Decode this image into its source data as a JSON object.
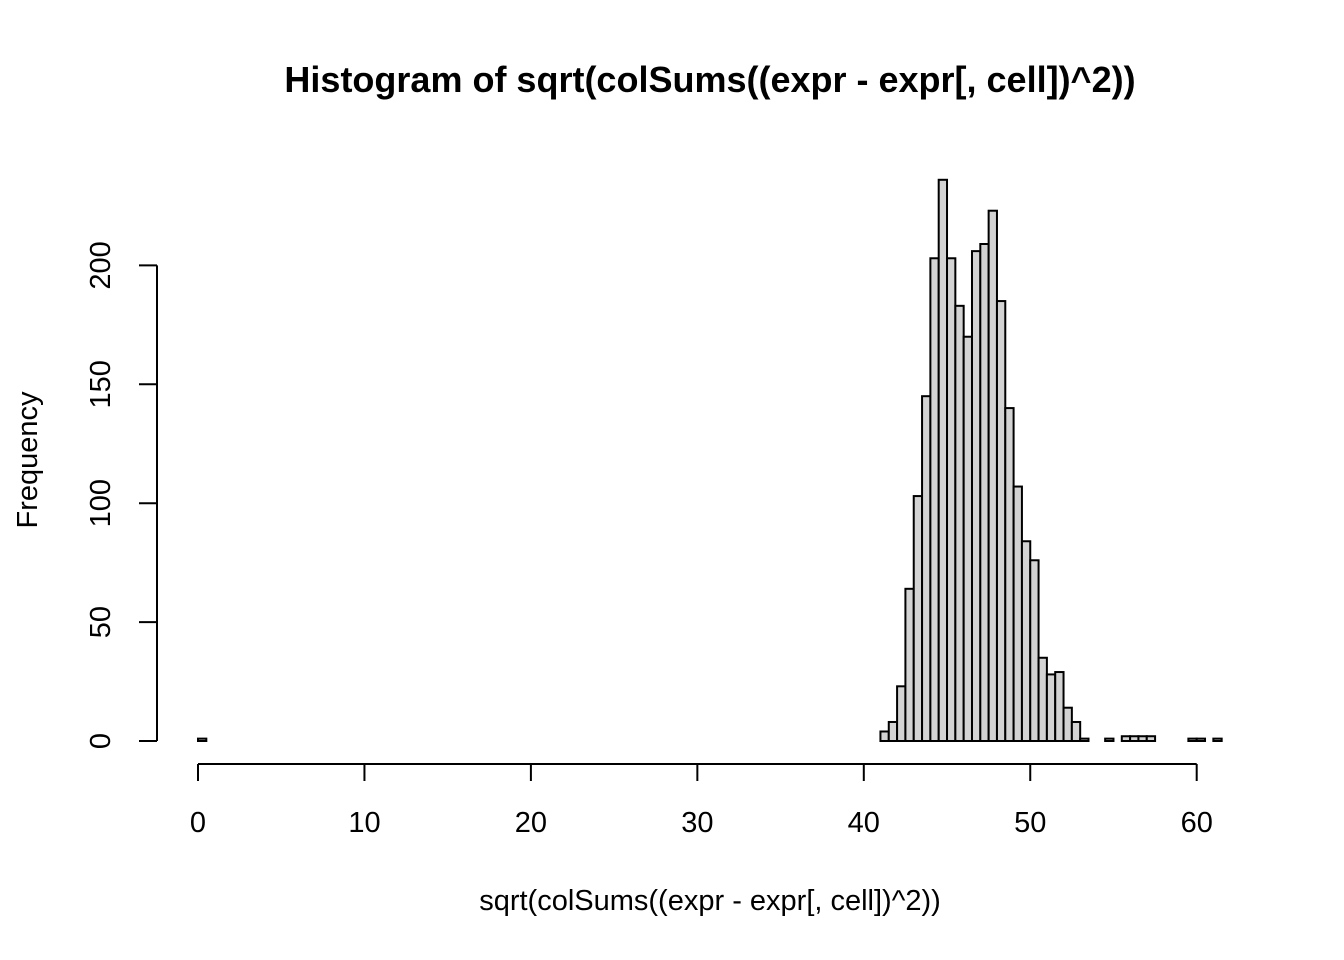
{
  "chart_data": {
    "type": "bar",
    "title": "Histogram of sqrt(colSums((expr - expr[, cell])^2))",
    "xlabel": "sqrt(colSums((expr - expr[, cell])^2))",
    "ylabel": "Frequency",
    "xlim": [
      0,
      62
    ],
    "ylim": [
      0,
      240
    ],
    "bin_width": 0.5,
    "x_ticks": [
      0,
      10,
      20,
      30,
      40,
      50,
      60
    ],
    "y_ticks": [
      0,
      50,
      100,
      150,
      200
    ],
    "bins": [
      {
        "start": 0.0,
        "count": 1
      },
      {
        "start": 41.0,
        "count": 4
      },
      {
        "start": 41.5,
        "count": 8
      },
      {
        "start": 42.0,
        "count": 23
      },
      {
        "start": 42.5,
        "count": 64
      },
      {
        "start": 43.0,
        "count": 103
      },
      {
        "start": 43.5,
        "count": 145
      },
      {
        "start": 44.0,
        "count": 203
      },
      {
        "start": 44.5,
        "count": 236
      },
      {
        "start": 45.0,
        "count": 203
      },
      {
        "start": 45.5,
        "count": 183
      },
      {
        "start": 46.0,
        "count": 170
      },
      {
        "start": 46.5,
        "count": 206
      },
      {
        "start": 47.0,
        "count": 209
      },
      {
        "start": 47.5,
        "count": 223
      },
      {
        "start": 48.0,
        "count": 185
      },
      {
        "start": 48.5,
        "count": 140
      },
      {
        "start": 49.0,
        "count": 107
      },
      {
        "start": 49.5,
        "count": 84
      },
      {
        "start": 50.0,
        "count": 76
      },
      {
        "start": 50.5,
        "count": 35
      },
      {
        "start": 51.0,
        "count": 28
      },
      {
        "start": 51.5,
        "count": 29
      },
      {
        "start": 52.0,
        "count": 14
      },
      {
        "start": 52.5,
        "count": 8
      },
      {
        "start": 53.0,
        "count": 1
      },
      {
        "start": 54.5,
        "count": 1
      },
      {
        "start": 55.5,
        "count": 2
      },
      {
        "start": 56.0,
        "count": 2
      },
      {
        "start": 56.5,
        "count": 2
      },
      {
        "start": 57.0,
        "count": 2
      },
      {
        "start": 59.5,
        "count": 1
      },
      {
        "start": 60.0,
        "count": 1
      },
      {
        "start": 61.0,
        "count": 1
      }
    ],
    "colors": {
      "bar_fill": "#d3d3d3",
      "bar_stroke": "#000000"
    }
  }
}
